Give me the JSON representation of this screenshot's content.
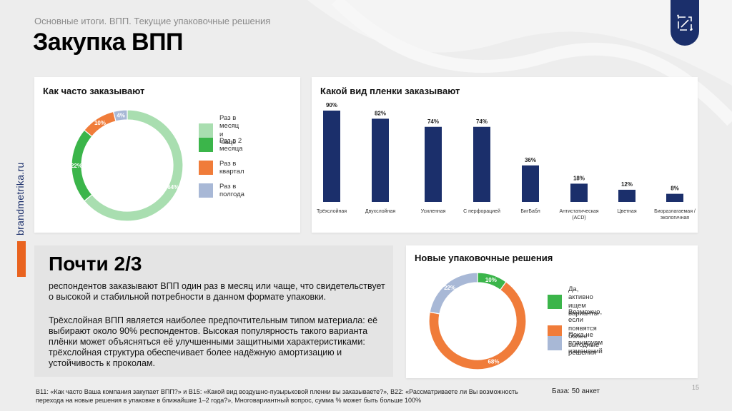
{
  "header": {
    "subtitle": "Основные итоги. ВПП. Текущие упаковочные решения",
    "title": "Закупка ВПП"
  },
  "side": {
    "brand_text": "brandmetrika.ru"
  },
  "colors": {
    "navy": "#1b2f6b",
    "orange": "#f07c3a",
    "green": "#3bb54a",
    "light_green": "#a9deb0",
    "lavender": "#a8b8d6",
    "accent": "#e9631f"
  },
  "chart_data": [
    {
      "type": "pie",
      "title": "Как часто заказывают",
      "categories": [
        "Раз в месяц и чаще",
        "Раз в 2 месяца",
        "Раз в квартал",
        "Раз в полгода"
      ],
      "values": [
        64,
        22,
        10,
        4
      ],
      "value_labels": [
        "64%",
        "22%",
        "10%",
        "4%"
      ],
      "colors": [
        "#a9deb0",
        "#3bb54a",
        "#f07c3a",
        "#a8b8d6"
      ],
      "legend_position": "right",
      "style": "donut"
    },
    {
      "type": "bar",
      "title": "Какой вид пленки заказывают",
      "categories": [
        "Трёхслойная",
        "Двухслойная",
        "Усиленная",
        "С перфорацией",
        "БигБабл",
        "Антистатическая (ACD)",
        "Цветная",
        "Биоразлагаемая / экологичная"
      ],
      "category_lines": [
        [
          "Трёхслойная"
        ],
        [
          "Двухслойная"
        ],
        [
          "Усиленная"
        ],
        [
          "С перфорацией"
        ],
        [
          "БигБабл"
        ],
        [
          "Антистатическая",
          "(ACD)"
        ],
        [
          "Цветная"
        ],
        [
          "Биоразлагаемая  /",
          "экологичная"
        ]
      ],
      "values": [
        90,
        82,
        74,
        74,
        36,
        18,
        12,
        8
      ],
      "value_labels": [
        "90%",
        "82%",
        "74%",
        "74%",
        "36%",
        "18%",
        "12%",
        "8%"
      ],
      "ylim": [
        0,
        100
      ],
      "color": "#1b2f6b",
      "grid": false
    },
    {
      "type": "pie",
      "title": "Новые упаковочные решения",
      "categories": [
        "Да, активно ищем варианты",
        "Возможно, если появятся более выгодные решения",
        "Пока не планируем изменений"
      ],
      "legend_lines": [
        [
          "Да, активно ищем варианты"
        ],
        [
          "Возможно, если появятся более",
          "выгодные решения"
        ],
        [
          "Пока не планируем изменений"
        ]
      ],
      "values": [
        10,
        68,
        22
      ],
      "value_labels": [
        "10%",
        "68%",
        "22%"
      ],
      "colors": [
        "#3bb54a",
        "#f07c3a",
        "#a8b8d6"
      ],
      "legend_position": "right",
      "style": "donut"
    }
  ],
  "summary": {
    "headline": "Почти 2/3",
    "paragraph1": "респондентов заказывают ВПП один раз в месяц или чаще, что свидетельствует о высокой и стабильной потребности в данном формате упаковки.",
    "paragraph2": "Трёхслойная ВПП является наиболее предпочтительным типом материала: её выбирают около 90% респондентов. Высокая популярность такого варианта плёнки может объясняться её улучшенными защитными характеристиками: трёхслойная структура обеспечивает более надёжную амортизацию и устойчивость к проколам."
  },
  "footer": {
    "footnote": "B11: «Как часто Ваша компания закупает ВПП?» и B15: «Какой вид воздушно-пузырьковой пленки вы заказываете?», B22: «Рассматриваете ли Вы возможность перехода на новые решения в упаковке в ближайшие 1–2 года?», Многовариантный вопрос, сумма % может быть больше 100%",
    "base": "База: 50 анкет",
    "page_number": "15"
  }
}
